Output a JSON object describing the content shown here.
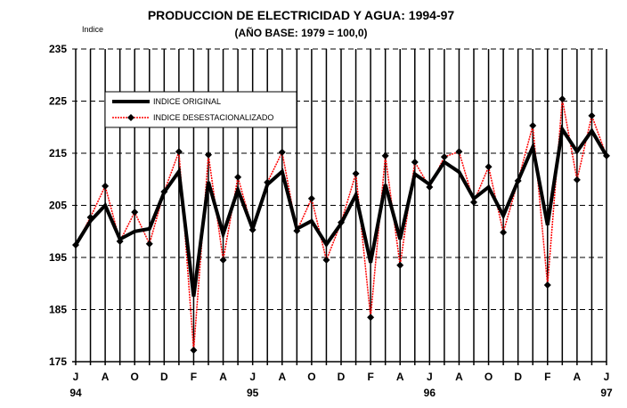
{
  "chart_data": {
    "type": "line",
    "title": "PRODUCCION DE ELECTRICIDAD Y AGUA: 1994-97",
    "subtitle": "(AÑO BASE: 1979 = 100,0)",
    "ylabel": "Indice",
    "xlabel": "",
    "ylim": [
      175,
      235
    ],
    "yticks": [
      "175",
      "185",
      "195",
      "205",
      "215",
      "225",
      "235"
    ],
    "ytick_values": [
      175,
      185,
      195,
      205,
      215,
      225,
      235
    ],
    "x_tick_labels": [
      "J",
      "A",
      "O",
      "D",
      "F",
      "A",
      "J",
      "A",
      "O",
      "D",
      "F",
      "A",
      "J",
      "A",
      "O",
      "D",
      "F",
      "A",
      "J"
    ],
    "year_labels": [
      "94",
      "95",
      "96",
      "97"
    ],
    "x": [
      "Jun-94",
      "Jul-94",
      "Ago-94",
      "Sep-94",
      "Oct-94",
      "Nov-94",
      "Dic-94",
      "Ene-95",
      "Feb-95",
      "Mar-95",
      "Abr-95",
      "May-95",
      "Jun-95",
      "Jul-95",
      "Ago-95",
      "Sep-95",
      "Oct-95",
      "Nov-95",
      "Dic-95",
      "Ene-96",
      "Feb-96",
      "Mar-96",
      "Abr-96",
      "May-96",
      "Jun-96",
      "Jul-96",
      "Ago-96",
      "Sep-96",
      "Oct-96",
      "Nov-96",
      "Dic-96",
      "Ene-97",
      "Feb-97",
      "Mar-97",
      "Abr-97",
      "May-97",
      "Jun-97"
    ],
    "grid": true,
    "legend_position": "top-left",
    "series": [
      {
        "name": "INDICE ORIGINAL",
        "color": "#000000",
        "values": [
          197.4,
          202,
          205,
          198.5,
          200,
          200.5,
          207.5,
          211.5,
          187.5,
          209.5,
          199.5,
          208,
          200.5,
          209,
          211.5,
          200.5,
          202,
          197.5,
          201.5,
          207,
          194,
          209,
          198.5,
          211,
          209,
          213.3,
          211.4,
          206.3,
          208.5,
          203,
          209.7,
          216.2,
          201.2,
          219.6,
          215.3,
          219.3,
          214.5
        ]
      },
      {
        "name": "INDICE DESESTACIONALIZADO",
        "color": "#ff0000",
        "values": [
          197.4,
          202.7,
          208.7,
          198.1,
          203.7,
          197.6,
          207.6,
          215.3,
          177.2,
          214.7,
          194.5,
          210.4,
          200.3,
          209.4,
          215.2,
          200.1,
          206.3,
          194.5,
          201.7,
          211.1,
          183.5,
          214.5,
          193.5,
          213.3,
          208.5,
          214.3,
          215.3,
          205.6,
          212.4,
          199.8,
          209.7,
          220.3,
          189.7,
          225.4,
          209.9,
          222.2,
          214.5
        ]
      }
    ]
  }
}
